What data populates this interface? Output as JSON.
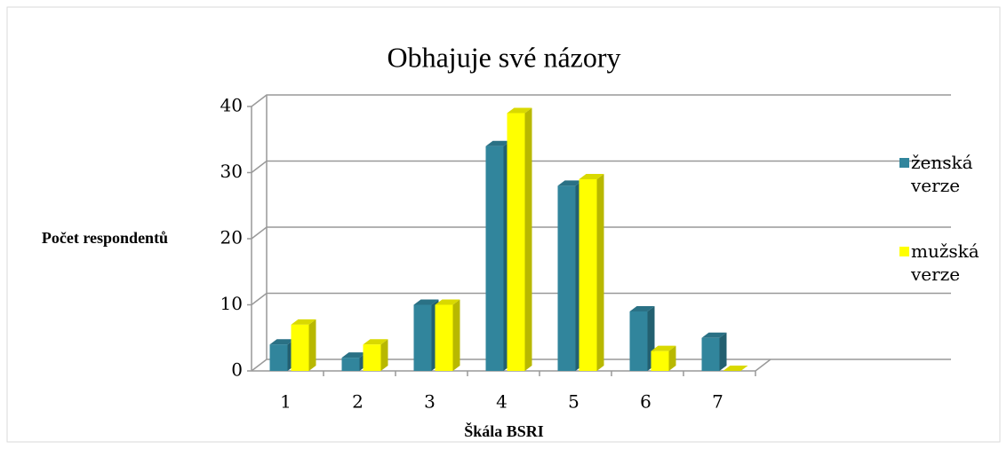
{
  "chart_data": {
    "type": "bar3d",
    "title": "Obhajuje své názory",
    "x_label": "Škála BSRI",
    "y_label": "Počet respondentů",
    "categories": [
      "1",
      "2",
      "3",
      "4",
      "5",
      "6",
      "7"
    ],
    "series": [
      {
        "name": "ženská verze",
        "color": "#31859c",
        "values": [
          4,
          2,
          10,
          34,
          28,
          9,
          5
        ]
      },
      {
        "name": "mužská verze",
        "color": "#ffff00",
        "values": [
          7,
          4,
          10,
          39,
          29,
          3,
          0
        ]
      }
    ],
    "ylim": [
      0,
      40
    ],
    "yticks": [
      0,
      10,
      20,
      30,
      40
    ],
    "grid": true,
    "legend": "right"
  }
}
